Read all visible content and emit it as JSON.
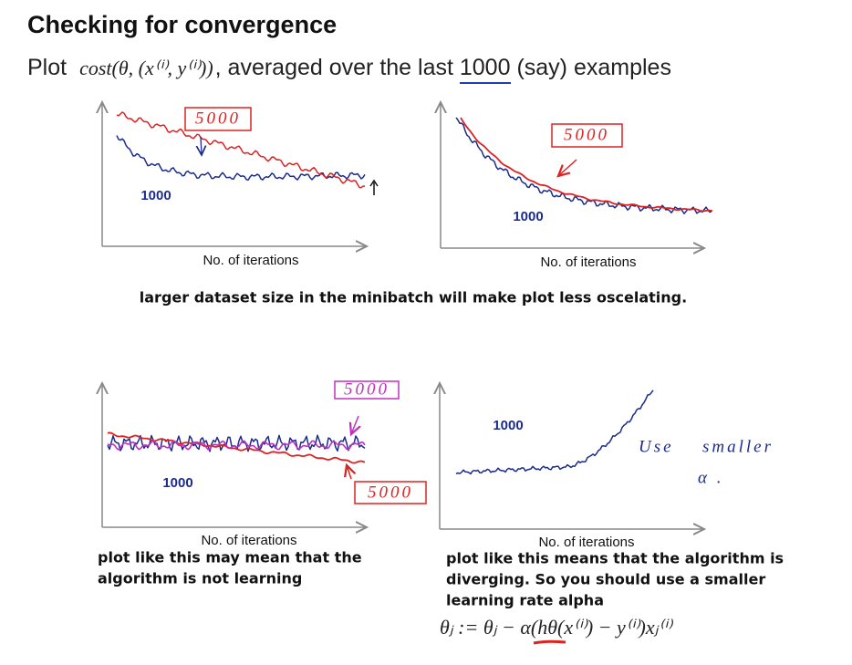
{
  "header": {
    "title": "Checking for convergence",
    "plot_word": "Plot",
    "cost_formula": "cost(θ, (x⁽ⁱ⁾, y⁽ⁱ⁾))",
    "text_before": ", averaged over the last ",
    "underlined": "1000",
    "text_after": " (say) examples"
  },
  "panels": [
    {
      "labels": [
        "5000",
        "1000"
      ],
      "x_label": "No. of iterations"
    },
    {
      "labels": [
        "5000",
        "1000"
      ],
      "x_label": "No. of iterations"
    },
    {
      "labels": [
        "5000",
        "5000",
        "1000"
      ],
      "x_label": "No. of iterations",
      "caption": [
        "plot like this may mean that the",
        "algorithm is not learning"
      ]
    },
    {
      "labels": [
        "1000"
      ],
      "x_label": "No. of iterations",
      "annotation": [
        "Use",
        "smaller",
        "α ."
      ],
      "caption": [
        "plot like this means that the algorithm is",
        "diverging. So you should use a smaller",
        "learning rate alpha"
      ],
      "update_rule": "θⱼ := θⱼ − α(hθ(x⁽ⁱ⁾) − y⁽ⁱ⁾)xⱼ⁽ⁱ⁾"
    }
  ],
  "note": "larger dataset size in the minibatch will make plot less oscelating."
}
